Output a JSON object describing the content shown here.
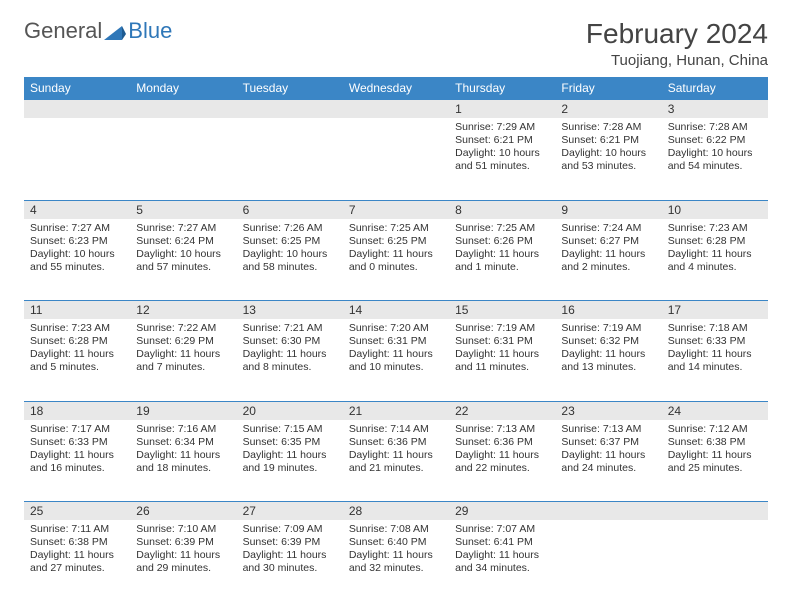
{
  "brand": {
    "general": "General",
    "blue": "Blue"
  },
  "title": "February 2024",
  "location": "Tuojiang, Hunan, China",
  "colors": {
    "header_bg": "#3b86c6",
    "header_text": "#ffffff",
    "daynum_bg": "#e8e8e8",
    "border": "#3b86c6",
    "text": "#333333",
    "brand_gray": "#555555",
    "brand_blue": "#2f77b8"
  },
  "dow": [
    "Sunday",
    "Monday",
    "Tuesday",
    "Wednesday",
    "Thursday",
    "Friday",
    "Saturday"
  ],
  "weeks": [
    [
      null,
      null,
      null,
      null,
      {
        "n": "1",
        "sr": "Sunrise: 7:29 AM",
        "ss": "Sunset: 6:21 PM",
        "d1": "Daylight: 10 hours",
        "d2": "and 51 minutes."
      },
      {
        "n": "2",
        "sr": "Sunrise: 7:28 AM",
        "ss": "Sunset: 6:21 PM",
        "d1": "Daylight: 10 hours",
        "d2": "and 53 minutes."
      },
      {
        "n": "3",
        "sr": "Sunrise: 7:28 AM",
        "ss": "Sunset: 6:22 PM",
        "d1": "Daylight: 10 hours",
        "d2": "and 54 minutes."
      }
    ],
    [
      {
        "n": "4",
        "sr": "Sunrise: 7:27 AM",
        "ss": "Sunset: 6:23 PM",
        "d1": "Daylight: 10 hours",
        "d2": "and 55 minutes."
      },
      {
        "n": "5",
        "sr": "Sunrise: 7:27 AM",
        "ss": "Sunset: 6:24 PM",
        "d1": "Daylight: 10 hours",
        "d2": "and 57 minutes."
      },
      {
        "n": "6",
        "sr": "Sunrise: 7:26 AM",
        "ss": "Sunset: 6:25 PM",
        "d1": "Daylight: 10 hours",
        "d2": "and 58 minutes."
      },
      {
        "n": "7",
        "sr": "Sunrise: 7:25 AM",
        "ss": "Sunset: 6:25 PM",
        "d1": "Daylight: 11 hours",
        "d2": "and 0 minutes."
      },
      {
        "n": "8",
        "sr": "Sunrise: 7:25 AM",
        "ss": "Sunset: 6:26 PM",
        "d1": "Daylight: 11 hours",
        "d2": "and 1 minute."
      },
      {
        "n": "9",
        "sr": "Sunrise: 7:24 AM",
        "ss": "Sunset: 6:27 PM",
        "d1": "Daylight: 11 hours",
        "d2": "and 2 minutes."
      },
      {
        "n": "10",
        "sr": "Sunrise: 7:23 AM",
        "ss": "Sunset: 6:28 PM",
        "d1": "Daylight: 11 hours",
        "d2": "and 4 minutes."
      }
    ],
    [
      {
        "n": "11",
        "sr": "Sunrise: 7:23 AM",
        "ss": "Sunset: 6:28 PM",
        "d1": "Daylight: 11 hours",
        "d2": "and 5 minutes."
      },
      {
        "n": "12",
        "sr": "Sunrise: 7:22 AM",
        "ss": "Sunset: 6:29 PM",
        "d1": "Daylight: 11 hours",
        "d2": "and 7 minutes."
      },
      {
        "n": "13",
        "sr": "Sunrise: 7:21 AM",
        "ss": "Sunset: 6:30 PM",
        "d1": "Daylight: 11 hours",
        "d2": "and 8 minutes."
      },
      {
        "n": "14",
        "sr": "Sunrise: 7:20 AM",
        "ss": "Sunset: 6:31 PM",
        "d1": "Daylight: 11 hours",
        "d2": "and 10 minutes."
      },
      {
        "n": "15",
        "sr": "Sunrise: 7:19 AM",
        "ss": "Sunset: 6:31 PM",
        "d1": "Daylight: 11 hours",
        "d2": "and 11 minutes."
      },
      {
        "n": "16",
        "sr": "Sunrise: 7:19 AM",
        "ss": "Sunset: 6:32 PM",
        "d1": "Daylight: 11 hours",
        "d2": "and 13 minutes."
      },
      {
        "n": "17",
        "sr": "Sunrise: 7:18 AM",
        "ss": "Sunset: 6:33 PM",
        "d1": "Daylight: 11 hours",
        "d2": "and 14 minutes."
      }
    ],
    [
      {
        "n": "18",
        "sr": "Sunrise: 7:17 AM",
        "ss": "Sunset: 6:33 PM",
        "d1": "Daylight: 11 hours",
        "d2": "and 16 minutes."
      },
      {
        "n": "19",
        "sr": "Sunrise: 7:16 AM",
        "ss": "Sunset: 6:34 PM",
        "d1": "Daylight: 11 hours",
        "d2": "and 18 minutes."
      },
      {
        "n": "20",
        "sr": "Sunrise: 7:15 AM",
        "ss": "Sunset: 6:35 PM",
        "d1": "Daylight: 11 hours",
        "d2": "and 19 minutes."
      },
      {
        "n": "21",
        "sr": "Sunrise: 7:14 AM",
        "ss": "Sunset: 6:36 PM",
        "d1": "Daylight: 11 hours",
        "d2": "and 21 minutes."
      },
      {
        "n": "22",
        "sr": "Sunrise: 7:13 AM",
        "ss": "Sunset: 6:36 PM",
        "d1": "Daylight: 11 hours",
        "d2": "and 22 minutes."
      },
      {
        "n": "23",
        "sr": "Sunrise: 7:13 AM",
        "ss": "Sunset: 6:37 PM",
        "d1": "Daylight: 11 hours",
        "d2": "and 24 minutes."
      },
      {
        "n": "24",
        "sr": "Sunrise: 7:12 AM",
        "ss": "Sunset: 6:38 PM",
        "d1": "Daylight: 11 hours",
        "d2": "and 25 minutes."
      }
    ],
    [
      {
        "n": "25",
        "sr": "Sunrise: 7:11 AM",
        "ss": "Sunset: 6:38 PM",
        "d1": "Daylight: 11 hours",
        "d2": "and 27 minutes."
      },
      {
        "n": "26",
        "sr": "Sunrise: 7:10 AM",
        "ss": "Sunset: 6:39 PM",
        "d1": "Daylight: 11 hours",
        "d2": "and 29 minutes."
      },
      {
        "n": "27",
        "sr": "Sunrise: 7:09 AM",
        "ss": "Sunset: 6:39 PM",
        "d1": "Daylight: 11 hours",
        "d2": "and 30 minutes."
      },
      {
        "n": "28",
        "sr": "Sunrise: 7:08 AM",
        "ss": "Sunset: 6:40 PM",
        "d1": "Daylight: 11 hours",
        "d2": "and 32 minutes."
      },
      {
        "n": "29",
        "sr": "Sunrise: 7:07 AM",
        "ss": "Sunset: 6:41 PM",
        "d1": "Daylight: 11 hours",
        "d2": "and 34 minutes."
      },
      null,
      null
    ]
  ]
}
